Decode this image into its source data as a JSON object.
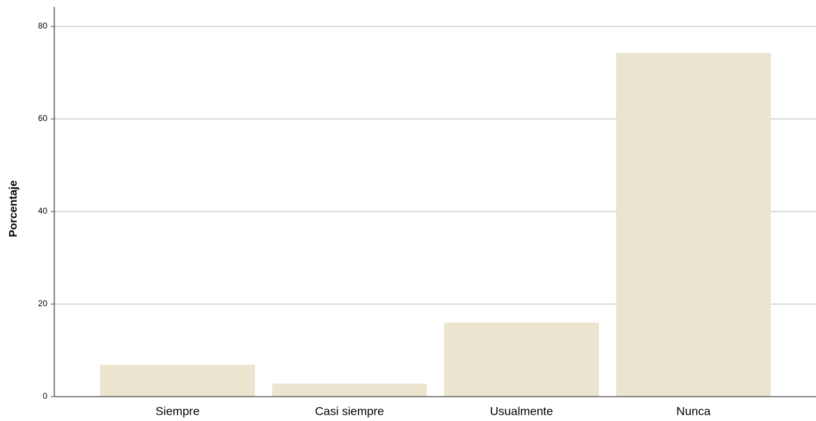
{
  "chart_data": {
    "type": "bar",
    "y_label": "Porcentaje",
    "categories": [
      "Siempre",
      "Casi siempre",
      "Usualmente",
      "Nunca"
    ],
    "values": [
      6.9,
      2.8,
      16.0,
      74.3
    ],
    "color": "#ebe4cf",
    "ylim": [
      0,
      84.2
    ],
    "yticks": [
      0,
      20,
      40,
      60,
      80
    ],
    "grid": true
  }
}
